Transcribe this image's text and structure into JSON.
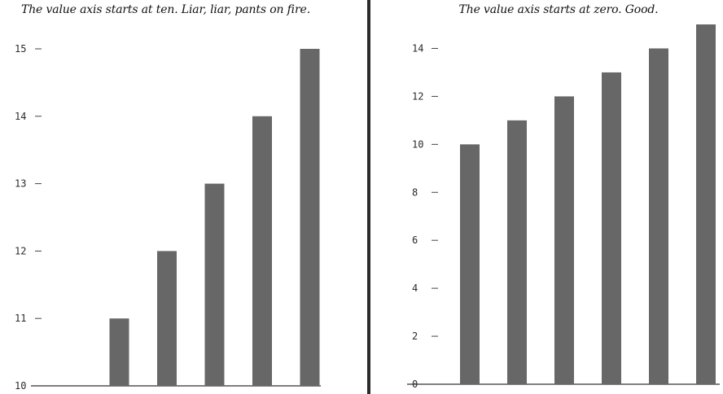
{
  "chart_data": [
    {
      "type": "bar",
      "title": "The value axis starts at ten. Liar, liar, pants on fire.",
      "xlabel": "",
      "ylabel": "",
      "ylim": [
        10,
        15
      ],
      "yticks": [
        "10",
        "11",
        "12",
        "13",
        "14",
        "15"
      ],
      "values": [
        10,
        11,
        12,
        13,
        14,
        15
      ],
      "colors": {
        "bar": "#676767",
        "axis": "#333333",
        "text": "#2a2a2a"
      },
      "grid": false
    },
    {
      "type": "bar",
      "title": "The value axis starts at zero. Good.",
      "xlabel": "",
      "ylabel": "",
      "ylim": [
        0,
        15
      ],
      "yticks": [
        "0",
        "2",
        "4",
        "6",
        "8",
        "10",
        "12",
        "14"
      ],
      "values": [
        10,
        11,
        12,
        13,
        14,
        15
      ],
      "colors": {
        "bar": "#676767",
        "axis": "#333333",
        "text": "#2a2a2a"
      },
      "grid": false
    }
  ]
}
